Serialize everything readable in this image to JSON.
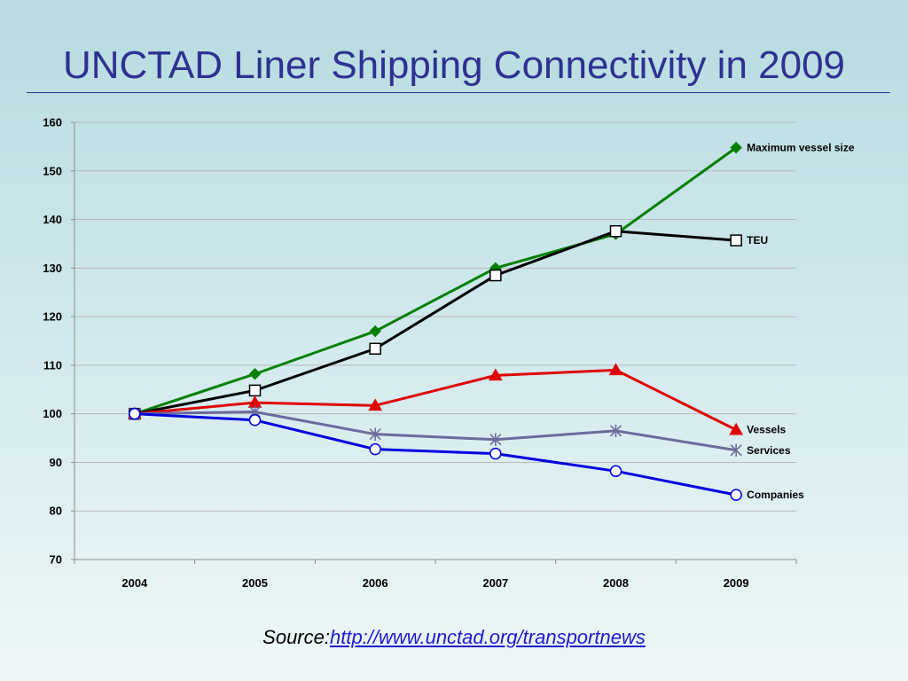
{
  "slide": {
    "title": "UNCTAD Liner Shipping Connectivity in 2009",
    "source_prefix": "Source:",
    "source_link": "http://www.unctad.org/transportnews"
  },
  "chart_data": {
    "type": "line",
    "title": "",
    "xlabel": "",
    "ylabel": "",
    "x": [
      "2004",
      "2005",
      "2006",
      "2007",
      "2008",
      "2009"
    ],
    "ylim": [
      70,
      160
    ],
    "yticks": [
      70,
      80,
      90,
      100,
      110,
      120,
      130,
      140,
      150,
      160
    ],
    "grid": true,
    "legend": "series labels at right end of each line",
    "series": [
      {
        "name": "Maximum vessel size",
        "values": [
          100,
          108.2,
          117,
          130,
          137,
          154.8
        ],
        "color": "#008000",
        "marker": "diamond"
      },
      {
        "name": "TEU",
        "values": [
          100,
          104.8,
          113.4,
          128.5,
          137.6,
          135.7
        ],
        "color": "#000000",
        "marker": "square"
      },
      {
        "name": "Vessels",
        "values": [
          100,
          102.3,
          101.7,
          107.9,
          109,
          96.7
        ],
        "color": "#e00000",
        "marker": "triangle"
      },
      {
        "name": "Services",
        "values": [
          100,
          100.4,
          95.8,
          94.7,
          96.5,
          92.5
        ],
        "color": "#6b6b9e",
        "marker": "star"
      },
      {
        "name": "Companies",
        "values": [
          100,
          98.7,
          92.7,
          91.8,
          88.2,
          83.3
        ],
        "color": "#0000e0",
        "marker": "circle"
      }
    ]
  }
}
